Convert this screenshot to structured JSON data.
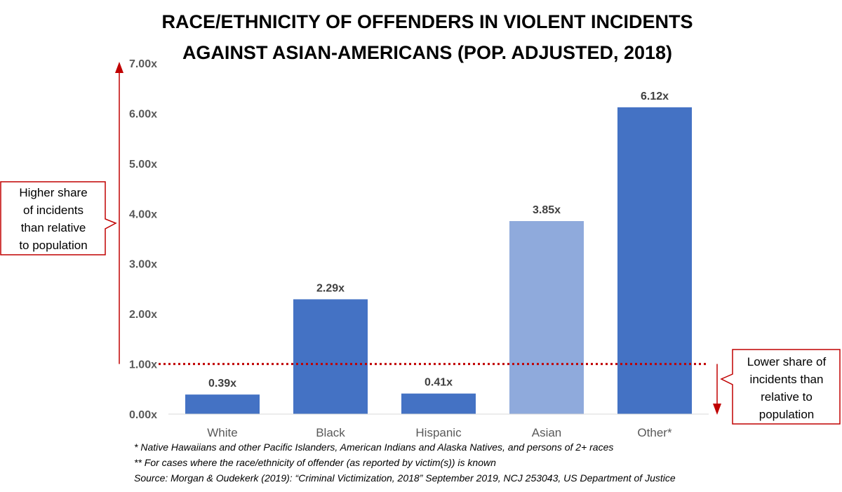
{
  "chart_data": {
    "type": "bar",
    "title_lines": [
      "RACE/ETHNICITY OF OFFENDERS IN VIOLENT INCIDENTS",
      "AGAINST ASIAN-AMERICANS (POP. ADJUSTED, 2018)"
    ],
    "categories": [
      "White",
      "Black",
      "Hispanic",
      "Asian",
      "Other*"
    ],
    "values": [
      0.39,
      2.29,
      0.41,
      3.85,
      6.12
    ],
    "data_labels": [
      "0.39x",
      "2.29x",
      "0.41x",
      "3.85x",
      "6.12x"
    ],
    "bar_colors": [
      "#4472C4",
      "#4472C4",
      "#4472C4",
      "#8FAADC",
      "#4472C4"
    ],
    "ylim": [
      0,
      7
    ],
    "yticks": [
      0,
      1,
      2,
      3,
      4,
      5,
      6,
      7
    ],
    "ytick_labels": [
      "0.00x",
      "1.00x",
      "2.00x",
      "3.00x",
      "4.00x",
      "5.00x",
      "6.00x",
      "7.00x"
    ],
    "reference_line": {
      "value": 1.0,
      "color": "#C00000",
      "style": "dotted"
    },
    "grid": false,
    "annotations": {
      "higher": {
        "lines": [
          "Higher share",
          "of incidents",
          "than relative",
          "to population"
        ],
        "color": "#C00000"
      },
      "lower": {
        "lines": [
          "Lower share of",
          "incidents than",
          "relative to",
          "population"
        ],
        "color": "#C00000"
      }
    },
    "footnotes": [
      "* Native Hawaiians and other Pacific Islanders, American Indians and Alaska Natives, and persons of 2+ races",
      "** For cases where the race/ethnicity of offender (as reported by victim(s)) is known",
      "Source: Morgan & Oudekerk (2019): “Criminal Victimization, 2018”  September 2019, NCJ 253043, US Department of Justice"
    ]
  }
}
